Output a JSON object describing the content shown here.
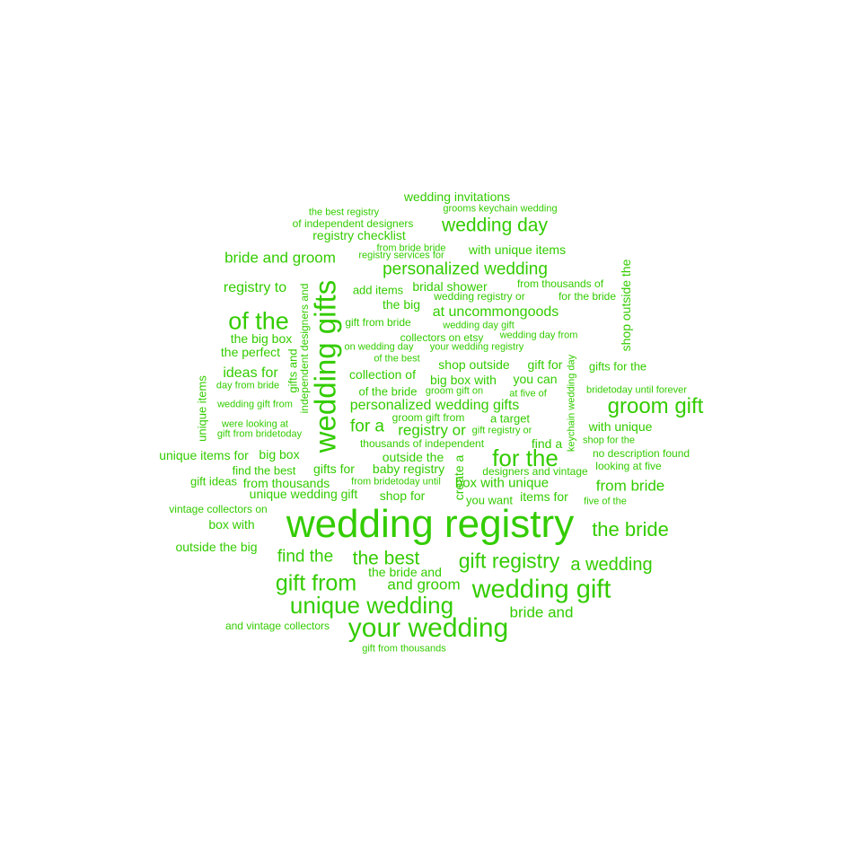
{
  "color": "#33cc00",
  "words": [
    {
      "text": "wedding invitations"
    },
    {
      "text": "grooms keychain wedding"
    },
    {
      "text": "the best registry"
    },
    {
      "text": "of independent designers"
    },
    {
      "text": "wedding day"
    },
    {
      "text": "registry checklist"
    },
    {
      "text": "from bride bride"
    },
    {
      "text": "with unique items"
    },
    {
      "text": "registry services for"
    },
    {
      "text": "bride and groom"
    },
    {
      "text": "personalized wedding"
    },
    {
      "text": "registry to"
    },
    {
      "text": "add items"
    },
    {
      "text": "bridal shower"
    },
    {
      "text": "from thousands of"
    },
    {
      "text": "wedding registry or"
    },
    {
      "text": "for the bride"
    },
    {
      "text": "the big"
    },
    {
      "text": "of the"
    },
    {
      "text": "at uncommongoods"
    },
    {
      "text": "gift from bride"
    },
    {
      "text": "wedding day gift"
    },
    {
      "text": "the big box"
    },
    {
      "text": "collectors on etsy"
    },
    {
      "text": "wedding day from"
    },
    {
      "text": "on wedding day"
    },
    {
      "text": "your wedding registry"
    },
    {
      "text": "the perfect"
    },
    {
      "text": "of the best"
    },
    {
      "text": "shop outside"
    },
    {
      "text": "gift for"
    },
    {
      "text": "gifts for the"
    },
    {
      "text": "ideas for"
    },
    {
      "text": "collection of"
    },
    {
      "text": "day from bride"
    },
    {
      "text": "big box with"
    },
    {
      "text": "you can"
    },
    {
      "text": "of the bride"
    },
    {
      "text": "groom gift on"
    },
    {
      "text": "at five of"
    },
    {
      "text": "bridetoday until forever"
    },
    {
      "text": "wedding gift from"
    },
    {
      "text": "personalized wedding gifts"
    },
    {
      "text": "groom gift"
    },
    {
      "text": "groom gift from"
    },
    {
      "text": "a target"
    },
    {
      "text": "for a"
    },
    {
      "text": "registry or"
    },
    {
      "text": "gift registry or"
    },
    {
      "text": "were looking at"
    },
    {
      "text": "with unique"
    },
    {
      "text": "gift from bridetoday"
    },
    {
      "text": "find a"
    },
    {
      "text": "shop for the"
    },
    {
      "text": "thousands of independent"
    },
    {
      "text": "unique items for"
    },
    {
      "text": "big box"
    },
    {
      "text": "outside the"
    },
    {
      "text": "for the"
    },
    {
      "text": "no description found"
    },
    {
      "text": "looking at five"
    },
    {
      "text": "find the best"
    },
    {
      "text": "gifts for"
    },
    {
      "text": "baby registry"
    },
    {
      "text": "designers and vintage"
    },
    {
      "text": "gift ideas"
    },
    {
      "text": "from thousands"
    },
    {
      "text": "from bridetoday until"
    },
    {
      "text": "box with unique"
    },
    {
      "text": "from bride"
    },
    {
      "text": "unique wedding gift"
    },
    {
      "text": "shop for"
    },
    {
      "text": "you want"
    },
    {
      "text": "items for"
    },
    {
      "text": "five of the"
    },
    {
      "text": "vintage collectors on"
    },
    {
      "text": "wedding registry"
    },
    {
      "text": "box with"
    },
    {
      "text": "the bride"
    },
    {
      "text": "outside the big"
    },
    {
      "text": "find the"
    },
    {
      "text": "the best"
    },
    {
      "text": "gift registry"
    },
    {
      "text": "a wedding"
    },
    {
      "text": "the bride and"
    },
    {
      "text": "gift from"
    },
    {
      "text": "and groom"
    },
    {
      "text": "wedding gift"
    },
    {
      "text": "unique wedding"
    },
    {
      "text": "bride and"
    },
    {
      "text": "and vintage collectors"
    },
    {
      "text": "your wedding"
    },
    {
      "text": "gift from thousands"
    },
    {
      "text": "wedding gifts"
    },
    {
      "text": "independent designers and"
    },
    {
      "text": "gifts and"
    },
    {
      "text": "unique items"
    },
    {
      "text": "create a"
    },
    {
      "text": "keychain wedding day"
    },
    {
      "text": "shop outside the"
    }
  ]
}
